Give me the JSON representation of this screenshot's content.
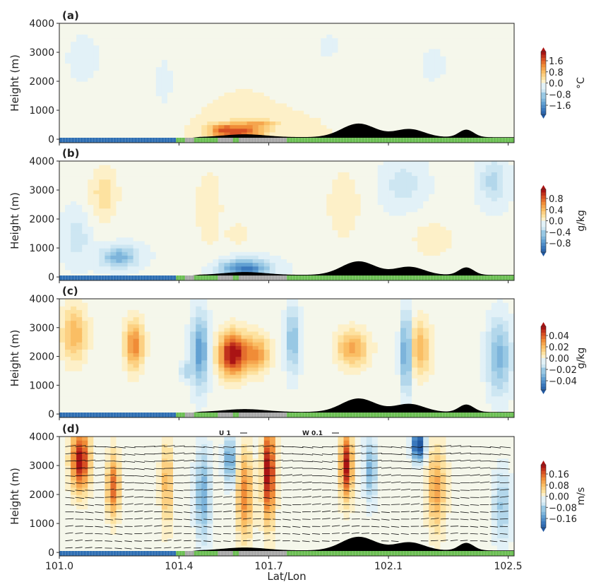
{
  "chart_data": [
    {
      "type": "heatmap",
      "panel_label": "(a)",
      "ylabel": "Height (m)",
      "ylim": [
        0,
        4000
      ],
      "yticks": [
        "0",
        "1000",
        "2000",
        "3000",
        "4000"
      ],
      "colorbar": {
        "ticks": [
          "1.6",
          "0.8",
          "0.0",
          "−0.8",
          "−1.6"
        ],
        "label": "°C",
        "range": [
          -1.6,
          1.6
        ]
      },
      "field": {
        "base": 0.08,
        "blobs": [
          {
            "x": 101.6,
            "z": 250,
            "w": 0.08,
            "h": 300,
            "v": 1.2
          },
          {
            "x": 101.67,
            "z": 550,
            "w": 0.06,
            "h": 150,
            "v": 0.5
          },
          {
            "x": 101.54,
            "z": 350,
            "w": 0.04,
            "h": 200,
            "v": 0.5
          },
          {
            "x": 101.08,
            "z": 2800,
            "w": 0.08,
            "h": 1200,
            "v": -0.25
          },
          {
            "x": 101.35,
            "z": 2000,
            "w": 0.05,
            "h": 1500,
            "v": -0.2
          },
          {
            "x": 101.9,
            "z": 3200,
            "w": 0.06,
            "h": 800,
            "v": -0.2
          },
          {
            "x": 102.25,
            "z": 2600,
            "w": 0.08,
            "h": 1200,
            "v": -0.2
          },
          {
            "x": 102.45,
            "z": 1700,
            "w": 0.05,
            "h": 900,
            "v": -0.15
          }
        ]
      }
    },
    {
      "type": "heatmap",
      "panel_label": "(b)",
      "ylabel": "Height (m)",
      "ylim": [
        0,
        4000
      ],
      "yticks": [
        "0",
        "1000",
        "2000",
        "3000",
        "4000"
      ],
      "colorbar": {
        "ticks": [
          "0.8",
          "0.4",
          "0.0",
          "−0.4",
          "−0.8"
        ],
        "label": "g/kg",
        "range": [
          -0.8,
          0.8
        ]
      },
      "field": {
        "base": -0.03,
        "blobs": [
          {
            "x": 101.62,
            "z": 300,
            "w": 0.08,
            "h": 300,
            "v": -0.6
          },
          {
            "x": 101.2,
            "z": 700,
            "w": 0.06,
            "h": 350,
            "v": -0.4
          },
          {
            "x": 101.06,
            "z": 1400,
            "w": 0.04,
            "h": 800,
            "v": -0.15
          },
          {
            "x": 101.15,
            "z": 2900,
            "w": 0.05,
            "h": 1000,
            "v": 0.2
          },
          {
            "x": 101.5,
            "z": 2400,
            "w": 0.05,
            "h": 1500,
            "v": 0.14
          },
          {
            "x": 101.6,
            "z": 1500,
            "w": 0.04,
            "h": 400,
            "v": 0.14
          },
          {
            "x": 101.95,
            "z": 2500,
            "w": 0.06,
            "h": 1300,
            "v": 0.14
          },
          {
            "x": 102.25,
            "z": 1300,
            "w": 0.08,
            "h": 700,
            "v": 0.13
          },
          {
            "x": 102.15,
            "z": 3200,
            "w": 0.06,
            "h": 700,
            "v": -0.15
          },
          {
            "x": 102.45,
            "z": 3300,
            "w": 0.04,
            "h": 700,
            "v": -0.22
          }
        ]
      }
    },
    {
      "type": "heatmap",
      "panel_label": "(c)",
      "ylabel": "Height (m)",
      "ylim": [
        0,
        4000
      ],
      "yticks": [
        "0",
        "1000",
        "2000",
        "3000",
        "4000"
      ],
      "colorbar": {
        "ticks": [
          "0.04",
          "0.02",
          "0.00",
          "−0.02",
          "−0.04"
        ],
        "label": "g/kg",
        "range": [
          -0.04,
          0.04
        ]
      },
      "field": {
        "base": 0,
        "blobs": [
          {
            "x": 101.58,
            "z": 2100,
            "w": 0.045,
            "h": 700,
            "v": 0.045
          },
          {
            "x": 101.25,
            "z": 2400,
            "w": 0.03,
            "h": 800,
            "v": 0.025
          },
          {
            "x": 101.66,
            "z": 2100,
            "w": 0.04,
            "h": 600,
            "v": 0.022
          },
          {
            "x": 101.05,
            "z": 2800,
            "w": 0.04,
            "h": 900,
            "v": 0.018
          },
          {
            "x": 101.98,
            "z": 2300,
            "w": 0.05,
            "h": 600,
            "v": 0.02
          },
          {
            "x": 102.2,
            "z": 2300,
            "w": 0.04,
            "h": 900,
            "v": 0.018
          },
          {
            "x": 101.47,
            "z": 2200,
            "w": 0.03,
            "h": 1300,
            "v": -0.025
          },
          {
            "x": 101.42,
            "z": 1500,
            "w": 0.015,
            "h": 300,
            "v": -0.015
          },
          {
            "x": 101.78,
            "z": 2600,
            "w": 0.025,
            "h": 1200,
            "v": -0.018
          },
          {
            "x": 102.16,
            "z": 2200,
            "w": 0.02,
            "h": 1300,
            "v": -0.03
          },
          {
            "x": 102.47,
            "z": 2000,
            "w": 0.04,
            "h": 1300,
            "v": -0.02
          }
        ]
      }
    },
    {
      "type": "heatmap",
      "panel_label": "(d)",
      "ylabel": "Height (m)",
      "xlabel": "Lat/Lon",
      "ylim": [
        0,
        4000
      ],
      "yticks": [
        "0",
        "1000",
        "2000",
        "3000",
        "4000"
      ],
      "xticks": [
        "101.0",
        "101.4",
        "101.7",
        "102.1",
        "102.5"
      ],
      "colorbar": {
        "ticks": [
          "0.16",
          "0.08",
          "0.00",
          "−0.08",
          "−0.16"
        ],
        "label": "m/s",
        "range": [
          -0.16,
          0.16
        ]
      },
      "vector_key": {
        "u_label": "U 1",
        "w_label": "W 0.1"
      },
      "field": {
        "base": 0,
        "blobs": [
          {
            "x": 101.07,
            "z": 3200,
            "w": 0.03,
            "h": 1000,
            "v": 0.17
          },
          {
            "x": 101.18,
            "z": 2300,
            "w": 0.02,
            "h": 1000,
            "v": 0.12
          },
          {
            "x": 101.36,
            "z": 2400,
            "w": 0.02,
            "h": 1400,
            "v": 0.07
          },
          {
            "x": 101.62,
            "z": 2000,
            "w": 0.025,
            "h": 1500,
            "v": 0.1
          },
          {
            "x": 101.7,
            "z": 2800,
            "w": 0.02,
            "h": 1600,
            "v": 0.18
          },
          {
            "x": 101.96,
            "z": 3000,
            "w": 0.02,
            "h": 1100,
            "v": 0.16
          },
          {
            "x": 102.26,
            "z": 2200,
            "w": 0.03,
            "h": 1400,
            "v": 0.08
          },
          {
            "x": 101.48,
            "z": 2000,
            "w": 0.025,
            "h": 1500,
            "v": -0.09
          },
          {
            "x": 101.57,
            "z": 3200,
            "w": 0.02,
            "h": 800,
            "v": -0.1
          },
          {
            "x": 102.04,
            "z": 2900,
            "w": 0.02,
            "h": 1100,
            "v": -0.08
          },
          {
            "x": 102.2,
            "z": 3700,
            "w": 0.02,
            "h": 500,
            "v": -0.2
          },
          {
            "x": 102.48,
            "z": 1600,
            "w": 0.03,
            "h": 1200,
            "v": -0.06
          }
        ]
      }
    }
  ]
}
